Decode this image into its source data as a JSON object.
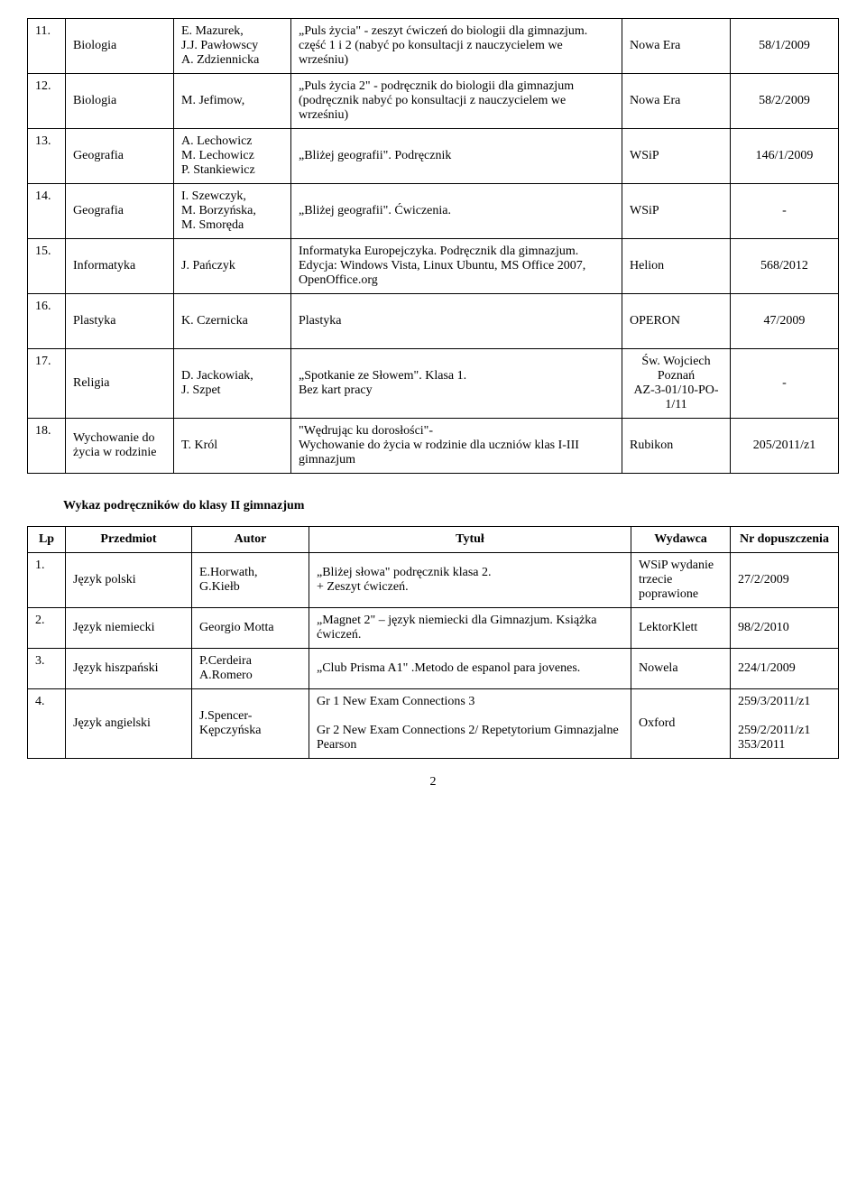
{
  "table1": {
    "rows": [
      {
        "n": "11.",
        "subj": "Biologia",
        "auth": "E. Mazurek,\nJ.J. Pawłowscy\nA. Zdziennicka",
        "title": "„Puls życia\" - zeszyt ćwiczeń do biologii dla gimnazjum. część 1 i 2 (nabyć po konsultacji z nauczycielem we wrześniu)",
        "pub": "Nowa Era",
        "nr": "58/1/2009"
      },
      {
        "n": "12.",
        "subj": "Biologia",
        "auth": "M. Jefimow,",
        "title": "„Puls życia 2\" - podręcznik do biologii dla gimnazjum (podręcznik nabyć po konsultacji z nauczycielem we wrześniu)",
        "pub": "Nowa Era",
        "nr": "58/2/2009",
        "tall": true
      },
      {
        "n": "13.",
        "subj": "Geografia",
        "auth": "A.  Lechowicz\nM. Lechowicz\nP. Stankiewicz",
        "title": "„Bliżej geografii\". Podręcznik",
        "pub": "WSiP",
        "nr": "146/1/2009",
        "tall": true
      },
      {
        "n": "14.",
        "subj": "Geografia",
        "auth": "I. Szewczyk,\nM. Borzyńska,\nM. Smoręda",
        "title": "„Bliżej geografii\". Ćwiczenia.",
        "pub": "WSiP",
        "nr": "-"
      },
      {
        "n": "15.",
        "subj": "Informatyka",
        "auth": "J. Pańczyk",
        "title": "Informatyka Europejczyka. Podręcznik dla gimnazjum. Edycja: Windows Vista, Linux Ubuntu, MS Office 2007, OpenOffice.org",
        "pub": "Helion",
        "nr": "568/2012"
      },
      {
        "n": "16.",
        "subj": "Plastyka",
        "auth": "K. Czernicka",
        "title": "Plastyka",
        "pub": "OPERON",
        "nr": "47/2009",
        "tall": true
      },
      {
        "n": "17.",
        "subj": "Religia",
        "auth": "D. Jackowiak,\nJ. Szpet",
        "title": "„Spotkanie ze Słowem\". Klasa 1.\nBez kart pracy",
        "pub": "Św. Wojciech\nPoznań\nAZ-3-01/10-PO-1/11",
        "nr": "-",
        "pubcenter": true,
        "tall": true
      },
      {
        "n": "18.",
        "subj": "Wychowanie do życia w rodzinie",
        "auth": "T. Król",
        "title": "\"Wędrując ku dorosłości\"-\nWychowanie do życia w rodzinie dla uczniów klas I-III gimnazjum",
        "pub": "Rubikon",
        "nr": "205/2011/z1"
      }
    ]
  },
  "section2_title": "Wykaz podręczników do klasy II gimnazjum",
  "table2": {
    "headers": {
      "lp": "Lp",
      "prz": "Przedmiot",
      "aut": "Autor",
      "tyt": "Tytuł",
      "wyd": "Wydawca",
      "dop": "Nr dopuszczenia"
    },
    "rows": [
      {
        "lp": "1.",
        "prz": "Język polski",
        "aut": "E.Horwath,\nG.Kiełb",
        "tyt": "„Bliżej słowa\" podręcznik klasa 2.\n+ Zeszyt ćwiczeń.",
        "wyd": "WSiP wydanie trzecie poprawione",
        "dop": "27/2/2009"
      },
      {
        "lp": "2.",
        "prz": "Język niemiecki",
        "aut": "Georgio Motta",
        "tyt": "„Magnet 2\" – język niemiecki dla Gimnazjum. Książka ćwiczeń.",
        "wyd": "LektorKlett",
        "dop": "98/2/2010"
      },
      {
        "lp": "3.",
        "prz": "Język hiszpański",
        "aut": "P.Cerdeira\nA.Romero",
        "tyt": "„Club Prisma A1\" .Metodo de espanol para jovenes.",
        "wyd": "Nowela",
        "dop": "224/1/2009"
      },
      {
        "lp": "4.",
        "prz": "Język angielski",
        "aut": "J.Spencer-Kępczyńska",
        "tyt": "Gr 1 New Exam Connections 3\n\nGr 2 New Exam Connections 2/ Repetytorium Gimnazjalne Pearson",
        "wyd": "Oxford",
        "dop": "259/3/2011/z1\n\n259/2/2011/z1\n353/2011"
      }
    ]
  },
  "page_number": "2"
}
